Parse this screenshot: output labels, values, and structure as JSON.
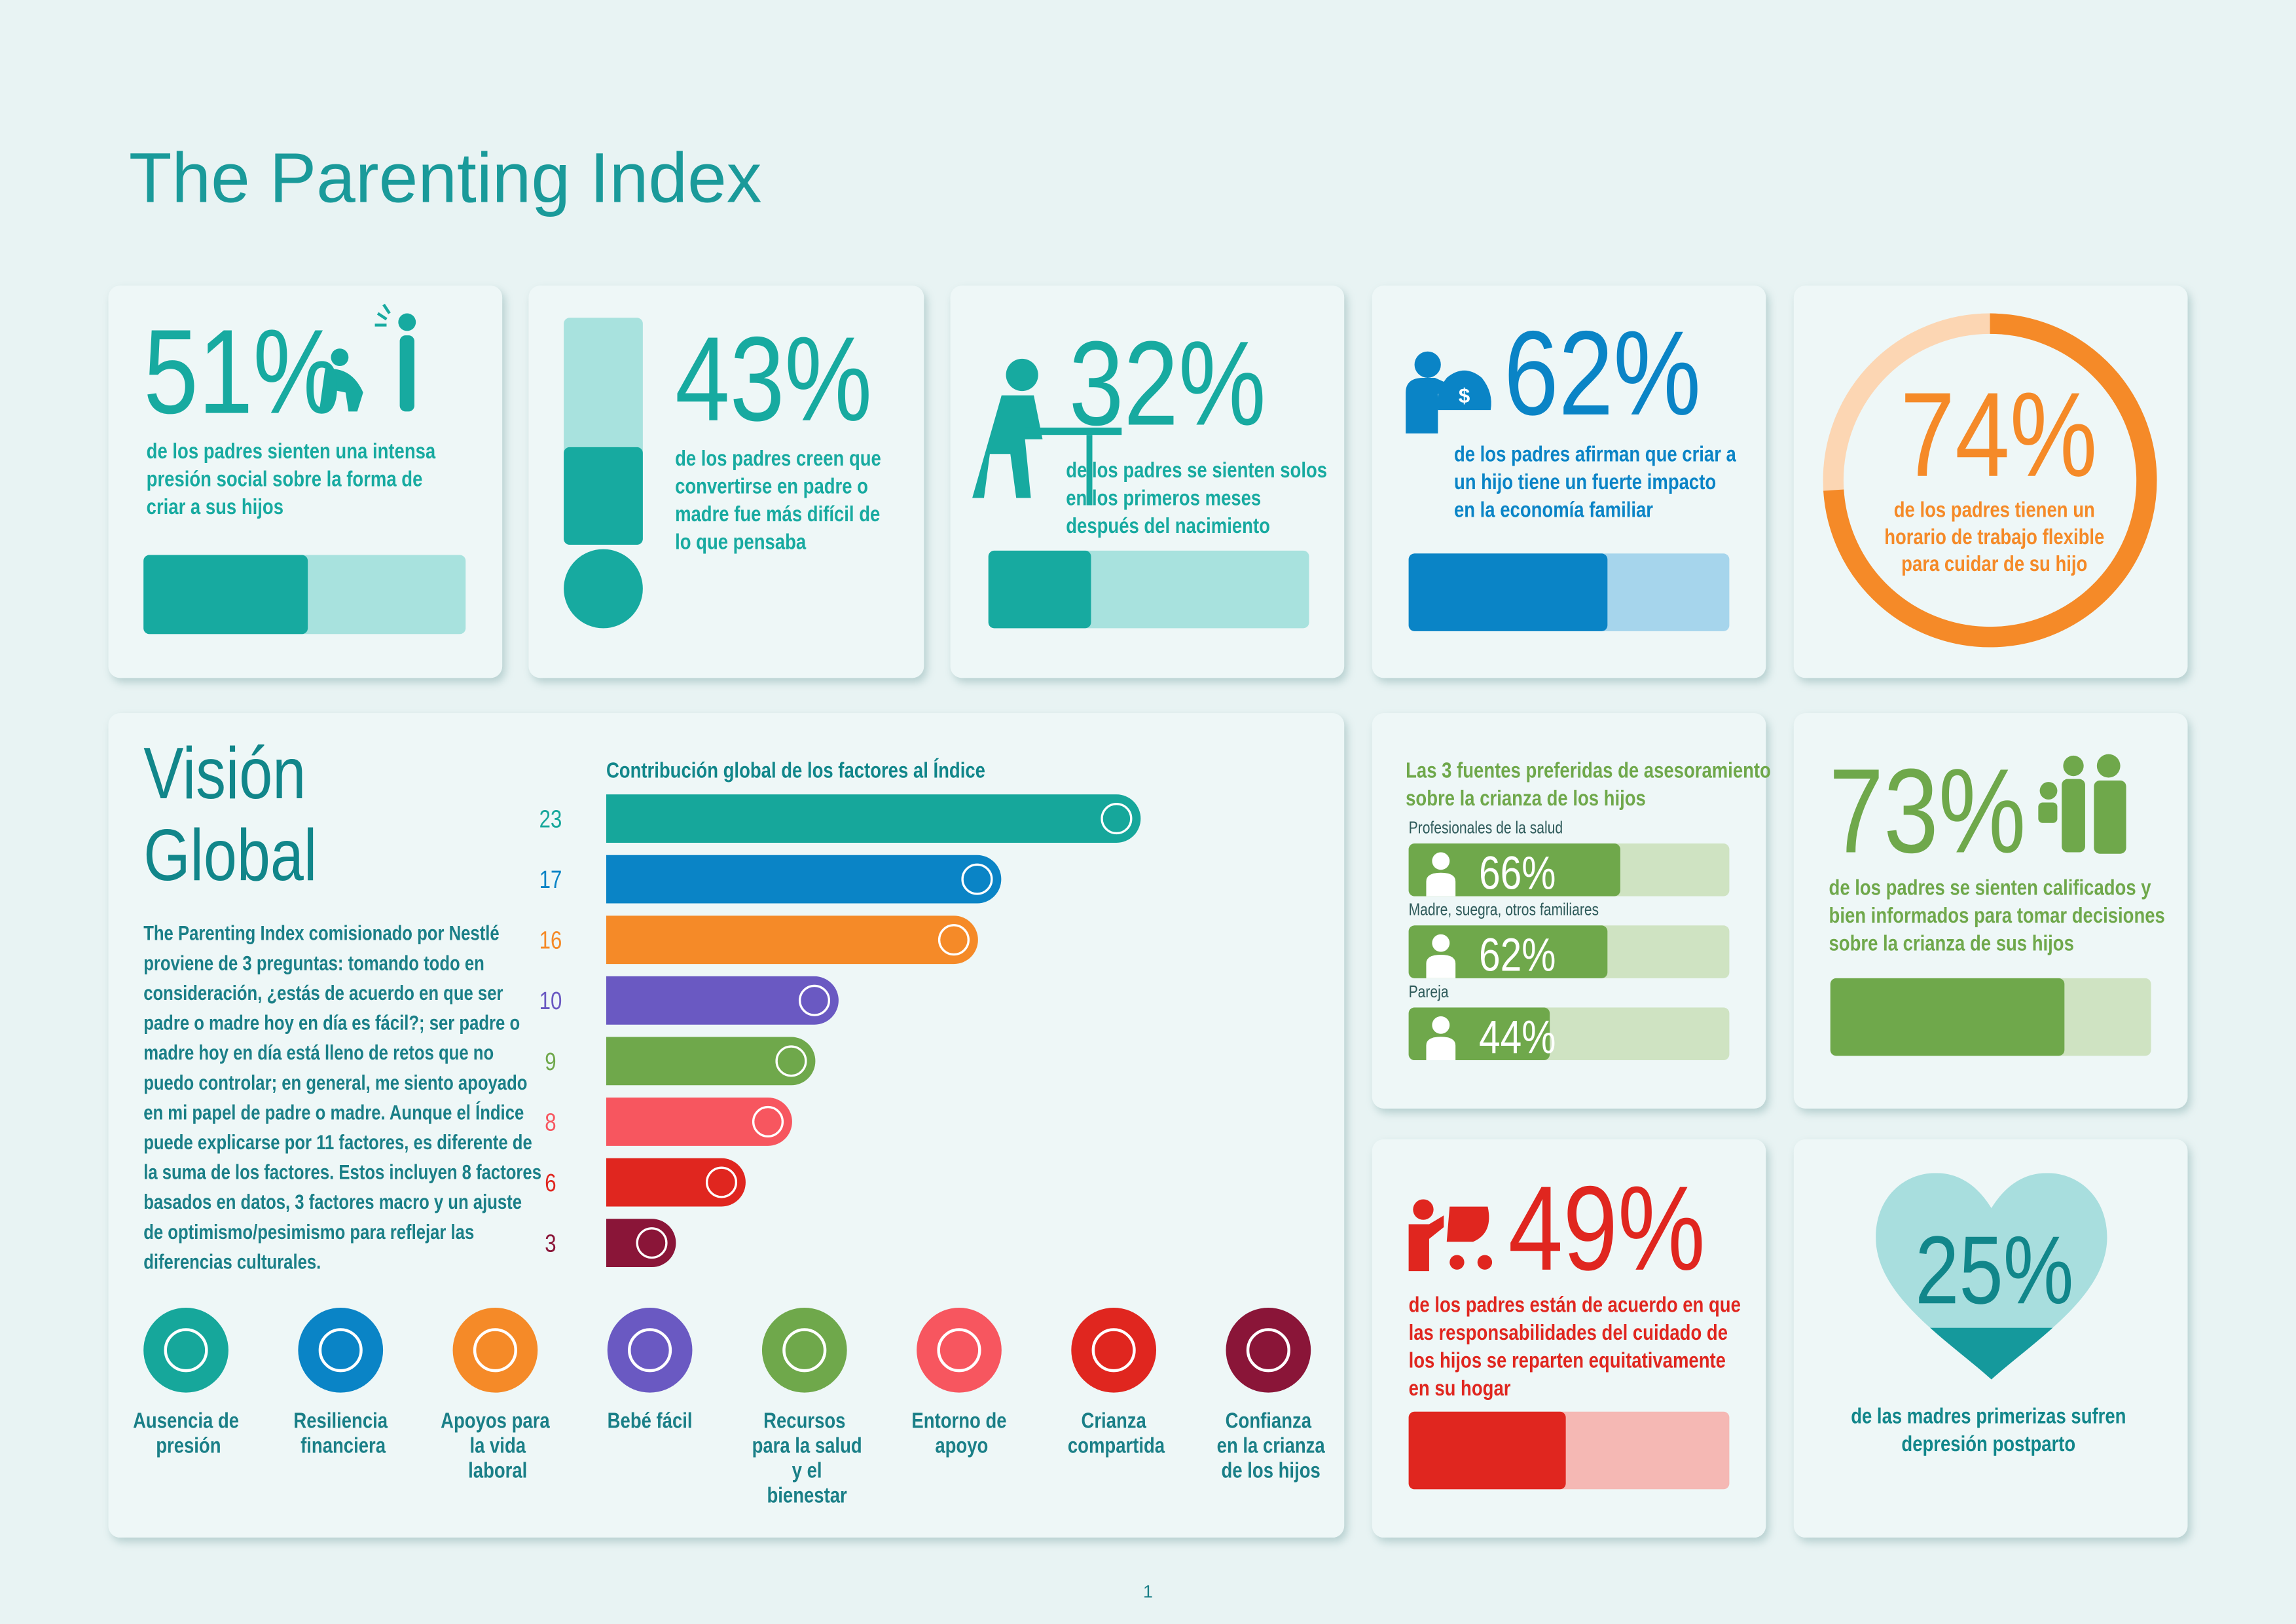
{
  "title": "The Parenting Index",
  "stats": [
    {
      "value": 51,
      "label": "51%",
      "color": "#17aaa0",
      "track": "#a8e2de",
      "text": [
        "de los padres sienten una intensa",
        "presión social sobre la forma de",
        "criar a sus hijos"
      ]
    },
    {
      "value": 43,
      "label": "43%",
      "color": "#17aaa0",
      "track": "#a8e2de",
      "text": [
        "de los padres creen que",
        "convertirse en padre o",
        "madre fue más difícil de",
        "lo que pensaba"
      ]
    },
    {
      "value": 32,
      "label": "32%",
      "color": "#17aaa0",
      "track": "#a8e2de",
      "text": [
        "de los padres se sienten solos",
        "en los primeros meses",
        "después del nacimiento"
      ]
    },
    {
      "value": 62,
      "label": "62%",
      "color": "#0a84c6",
      "track": "#a6d5ec",
      "text": [
        "de los padres afirman que criar a",
        "un hijo tiene un fuerte impacto",
        "en la economía familiar"
      ]
    },
    {
      "value": 74,
      "label": "74%",
      "color": "#f58a28",
      "track": "#fcd6b3",
      "text": [
        "de los padres tienen un",
        "horario de trabajo flexible",
        "para cuidar de su hijo"
      ]
    },
    {
      "value": 73,
      "label": "73%",
      "color": "#6fa84b",
      "track": "#cfe3c2",
      "text": [
        "de los padres se sienten calificados y",
        "bien informados para tomar decisiones",
        "sobre la crianza de sus hijos"
      ]
    },
    {
      "value": 49,
      "label": "49%",
      "color": "#e0261f",
      "track": "#f5b8b4",
      "text": [
        "de los padres están de acuerdo en que",
        "las responsabilidades del cuidado de",
        "los hijos se reparten equitativamente",
        "en su hogar"
      ]
    },
    {
      "value": 25,
      "label": "25%",
      "color": "#15999c",
      "track": "#a8dede",
      "text": [
        "de las madres primerizas sufren",
        "depresión postparto"
      ]
    }
  ],
  "vision": {
    "title": [
      "Visión",
      "Global"
    ],
    "text": [
      "The Parenting Index comisionado por Nestlé",
      "proviene de 3 preguntas: tomando todo en",
      "consideración, ¿estás de acuerdo en que ser",
      "padre o madre hoy en día es fácil?; ser padre o",
      "madre hoy en día está lleno de retos que no",
      "puedo controlar; en general, me siento apoyado",
      "en mi papel de padre o madre. Aunque el Índice",
      "puede explicarse por 11 factores, es diferente de",
      "la suma de los factores. Estos incluyen 8 factores",
      "basados en datos, 3 factores macro y un ajuste",
      "de optimismo/pesimismo para reflejar las",
      "diferencias culturales."
    ]
  },
  "chart_data": {
    "type": "bar",
    "title": "Contribución global de los factores al Índice",
    "categories": [
      "Ausencia de presión",
      "Resiliencia financiera",
      "Apoyos para la vida laboral",
      "Bebé fácil",
      "Recursos para la salud y el bienestar",
      "Entorno de apoyo",
      "Crianza compartida",
      "Confianza en la crianza de los hijos"
    ],
    "values": [
      23,
      17,
      16,
      10,
      9,
      8,
      6,
      3
    ],
    "colors": [
      "#16a79b",
      "#0a84c6",
      "#f58a28",
      "#6a59c2",
      "#6fa84b",
      "#f7565f",
      "#e0261f",
      "#8a1538"
    ]
  },
  "sources": {
    "title": [
      "Las 3 fuentes preferidas de asesoramiento",
      "sobre la crianza de los hijos"
    ],
    "color": "#6fa84b",
    "track": "#cfe3c2",
    "items": [
      {
        "label": "Profesionales de la salud",
        "value": 66,
        "value_label": "66%"
      },
      {
        "label": "Madre, suegra, otros familiares",
        "value": 62,
        "value_label": "62%"
      },
      {
        "label": "Pareja",
        "value": 44,
        "value_label": "44%"
      }
    ]
  },
  "page_number": "1"
}
